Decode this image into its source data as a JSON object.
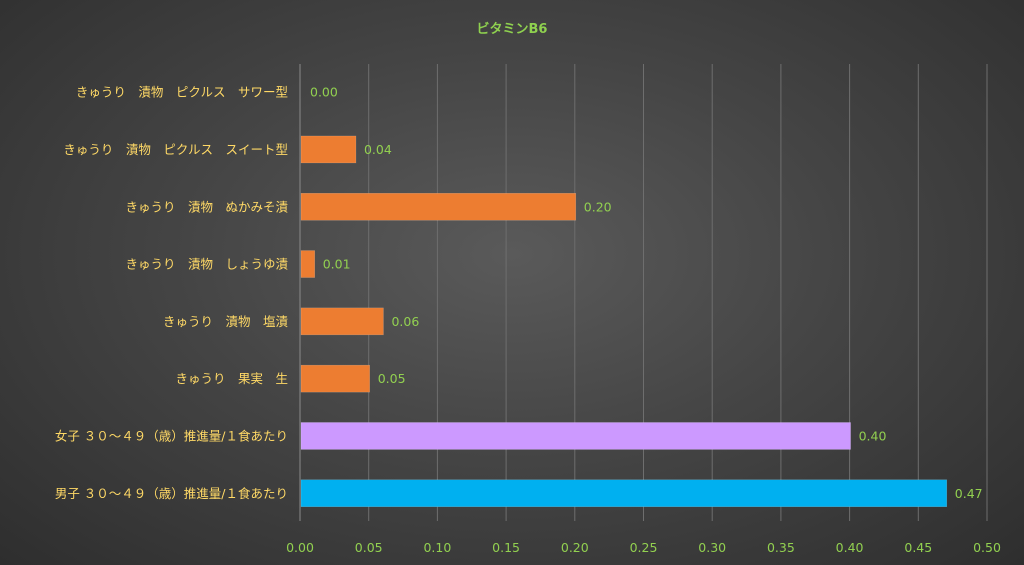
{
  "chart_data": {
    "type": "bar",
    "orientation": "horizontal",
    "title": "ビタミンB6",
    "categories": [
      "きゅうり　漬物　ピクルス　サワー型",
      "きゅうり　漬物　ピクルス　スイート型",
      "きゅうり　漬物　ぬかみそ漬",
      "きゅうり　漬物　しょうゆ漬",
      "きゅうり　漬物　塩漬",
      "きゅうり　果実　生",
      "女子 ３０～４９（歳）推進量/１食あたり",
      "男子 ３０～４９（歳）推進量/１食あたり"
    ],
    "values": [
      0.0,
      0.04,
      0.2,
      0.01,
      0.06,
      0.05,
      0.4,
      0.47
    ],
    "data_labels": [
      "0.00",
      "0.04",
      "0.20",
      "0.01",
      "0.06",
      "0.05",
      "0.40",
      "0.47"
    ],
    "bar_colors": [
      "#ed7d31",
      "#ed7d31",
      "#ed7d31",
      "#ed7d31",
      "#ed7d31",
      "#ed7d31",
      "#cc99ff",
      "#00b0f0"
    ],
    "xlim": [
      0,
      0.5
    ],
    "x_ticks": [
      "0.00",
      "0.05",
      "0.10",
      "0.15",
      "0.20",
      "0.25",
      "0.30",
      "0.35",
      "0.40",
      "0.45",
      "0.50"
    ],
    "grid": true,
    "legend": "none",
    "colors": {
      "title": "#8fd14f",
      "category_label": "#ffd966",
      "tick_label": "#92d050",
      "data_label": "#92d050",
      "gridline": "#6e6e6e"
    }
  }
}
